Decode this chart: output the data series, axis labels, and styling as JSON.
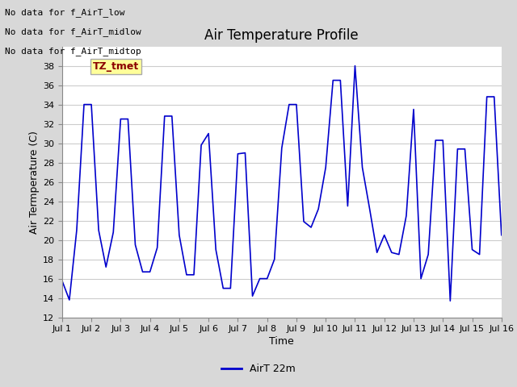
{
  "title": "Air Temperature Profile",
  "xlabel": "Time",
  "ylabel": "Air Termperature (C)",
  "ylim": [
    12,
    40
  ],
  "yticks": [
    12,
    14,
    16,
    18,
    20,
    22,
    24,
    26,
    28,
    30,
    32,
    34,
    36,
    38
  ],
  "xtick_labels": [
    "Jul 1",
    "Jul 2",
    "Jul 3",
    "Jul 4",
    "Jul 5",
    "Jul 6",
    "Jul 7",
    "Jul 8",
    "Jul 9",
    "Jul 10",
    "Jul 11",
    "Jul 12",
    "Jul 13",
    "Jul 14",
    "Jul 15",
    "Jul 16"
  ],
  "line_color": "#0000cc",
  "line_width": 1.2,
  "legend_label": "AirT 22m",
  "no_data_labels": [
    "No data for f_AirT_low",
    "No data for f_AirT_midlow",
    "No data for f_AirT_midtop"
  ],
  "tz_label": "TZ_tmet",
  "figure_bg": "#d8d8d8",
  "plot_bg": "#ffffff",
  "grid_color": "#cccccc",
  "title_fontsize": 12,
  "axis_label_fontsize": 9,
  "tick_fontsize": 8,
  "nodata_fontsize": 8,
  "tz_fontsize": 9,
  "x_values": [
    0.0,
    0.25,
    0.5,
    0.75,
    1.0,
    1.25,
    1.5,
    1.75,
    2.0,
    2.25,
    2.5,
    2.75,
    3.0,
    3.25,
    3.5,
    3.75,
    4.0,
    4.25,
    4.5,
    4.75,
    5.0,
    5.25,
    5.5,
    5.75,
    6.0,
    6.25,
    6.5,
    6.75,
    7.0,
    7.25,
    7.5,
    7.75,
    8.0,
    8.25,
    8.5,
    8.75,
    9.0,
    9.25,
    9.5,
    9.75,
    10.0,
    10.25,
    10.5,
    10.75,
    11.0,
    11.25,
    11.5,
    11.75,
    12.0,
    12.25,
    12.5,
    12.75,
    13.0,
    13.25,
    13.5,
    13.75,
    14.0,
    14.25,
    14.5,
    14.75,
    15.0
  ],
  "y_values": [
    15.8,
    13.8,
    21.0,
    34.0,
    34.0,
    21.0,
    17.2,
    20.8,
    32.5,
    32.5,
    19.5,
    16.7,
    16.7,
    19.2,
    32.8,
    32.8,
    20.5,
    16.4,
    16.4,
    29.8,
    31.0,
    19.0,
    15.0,
    15.0,
    28.9,
    29.0,
    14.2,
    16.0,
    16.0,
    18.0,
    29.5,
    34.0,
    34.0,
    21.9,
    21.3,
    23.2,
    27.5,
    36.5,
    36.5,
    23.5,
    38.0,
    27.5,
    23.2,
    18.7,
    20.5,
    18.7,
    18.5,
    22.5,
    33.5,
    16.0,
    18.5,
    30.3,
    30.3,
    13.7,
    29.4,
    29.4,
    19.0,
    18.5,
    34.8,
    34.8,
    20.5
  ]
}
